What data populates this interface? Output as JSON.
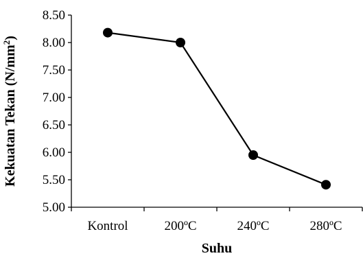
{
  "chart_data": {
    "type": "line",
    "categories": [
      "Kontrol",
      "200ºC",
      "240ºC",
      "280ºC"
    ],
    "series": [
      {
        "values": [
          8.18,
          8.0,
          5.95,
          5.41
        ]
      }
    ],
    "xlabel": "Suhu",
    "ylabel_main": "Kekuatan Tekan (N/mm",
    "ylabel_sup": "2",
    "ylabel_end": ")",
    "ylim": [
      5.0,
      8.5
    ],
    "yticks": [
      "5.00",
      "5.50",
      "6.00",
      "6.50",
      "7.00",
      "7.50",
      "8.00",
      "8.50"
    ],
    "grid": false,
    "legend": "none",
    "colors": {
      "line": "#000000",
      "marker": "#000000"
    }
  }
}
